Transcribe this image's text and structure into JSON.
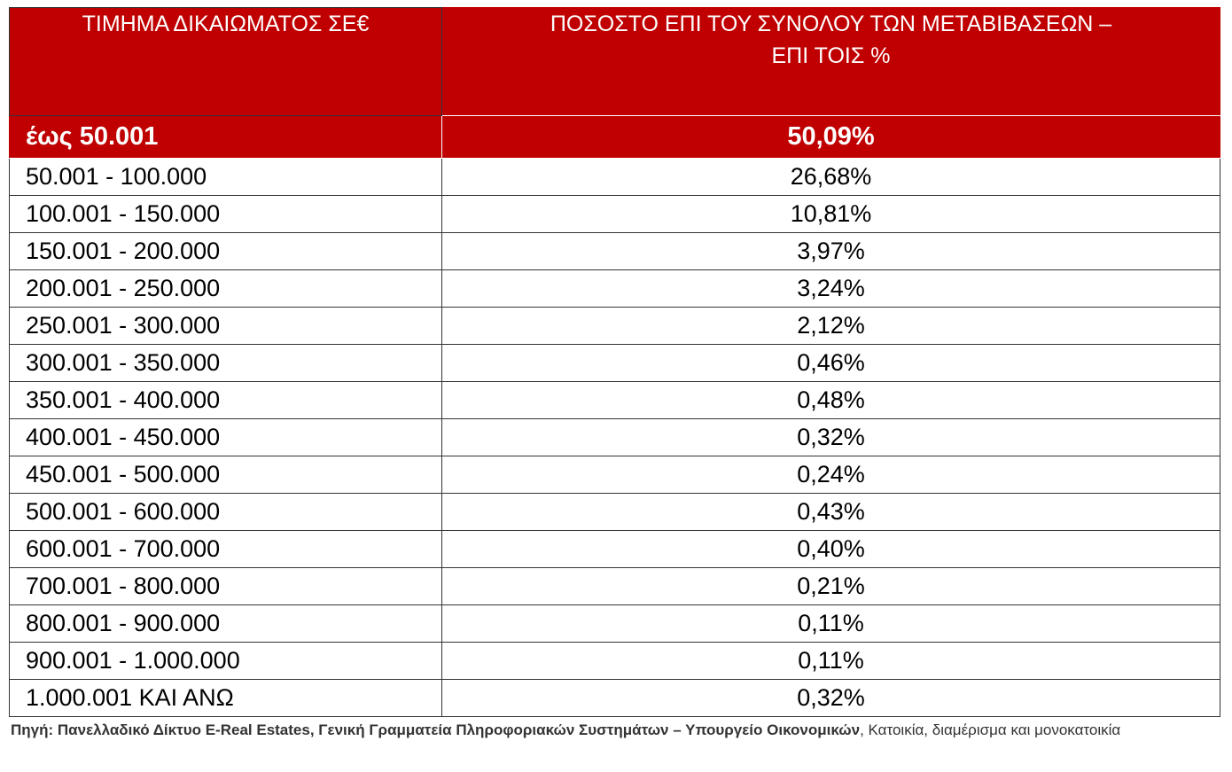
{
  "header": {
    "col1": "ΤΙΜΗΜΑ ΔΙΚΑΙΩΜΑΤΟΣ ΣΕ€",
    "col2_line1": "ΠΟΣΟΣΤΟ ΕΠΙ ΤΟΥ ΣΥΝΟΛΟΥ ΤΩΝ ΜΕΤΑΒΙΒΑΣΕΩΝ –",
    "col2_line2": "ΕΠΙ ΤΟΙΣ %"
  },
  "highlight_row": {
    "range": "έως 50.001",
    "percent": "50,09%"
  },
  "rows": [
    {
      "range": "50.001 - 100.000",
      "percent": "26,68%"
    },
    {
      "range": "100.001 - 150.000",
      "percent": "10,81%"
    },
    {
      "range": "150.001 - 200.000",
      "percent": "3,97%"
    },
    {
      "range": "200.001 - 250.000",
      "percent": "3,24%"
    },
    {
      "range": "250.001 - 300.000",
      "percent": "2,12%"
    },
    {
      "range": "300.001 - 350.000",
      "percent": "0,46%"
    },
    {
      "range": "350.001 - 400.000",
      "percent": "0,48%"
    },
    {
      "range": "400.001 - 450.000",
      "percent": "0,32%"
    },
    {
      "range": "450.001 - 500.000",
      "percent": "0,24%"
    },
    {
      "range": "500.001 - 600.000",
      "percent": "0,43%"
    },
    {
      "range": "600.001 - 700.000",
      "percent": "0,40%"
    },
    {
      "range": "700.001 - 800.000",
      "percent": "0,21%"
    },
    {
      "range": "800.001 - 900.000",
      "percent": "0,11%"
    },
    {
      "range": "900.001 - 1.000.000",
      "percent": "0,11%"
    },
    {
      "range": "1.000.001 ΚΑΙ ΑΝΩ",
      "percent": "0,32%"
    }
  ],
  "source": {
    "bold": "Πηγή: Πανελλαδικό Δίκτυο E-Real Estates, Γενική Γραμματεία Πληροφοριακών Συστημάτων – Υπουργείο Οικονομικών",
    "normal": ", Κατοικία, διαμέρισμα και μονοκατοικία"
  },
  "colors": {
    "header_bg": "#c00000",
    "header_text": "#ffffff"
  }
}
